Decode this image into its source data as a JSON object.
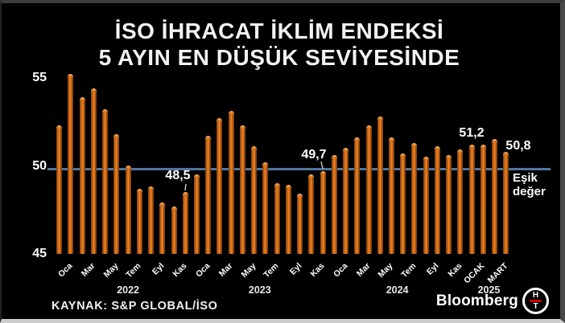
{
  "title": {
    "line1": "İSO İHRACAT İKLİM ENDEKSİ",
    "line2": "5 AYIN EN DÜŞÜK SEVİYESİNDE"
  },
  "source": "KAYNAK: S&P GLOBAL/İSO",
  "branding": {
    "wordmark": "Bloomberg",
    "logo_top": "H",
    "logo_bottom": "T"
  },
  "chart_data": {
    "type": "bar",
    "title": "İSO İHRACAT İKLİM ENDEKSİ 5 AYIN EN DÜŞÜK SEVİYESİNDE",
    "ylabel": "",
    "xlabel": "",
    "ylim": [
      45,
      55.5
    ],
    "yticks": [
      "55",
      "50",
      "45"
    ],
    "grid": false,
    "bar_color": "#e87a1c",
    "threshold": {
      "value": 50,
      "label": "Eşik değer",
      "color": "#50769c"
    },
    "x": [
      "Ara 2021",
      "Oca 2022",
      "Şub 2022",
      "Mar 2022",
      "Nis 2022",
      "May 2022",
      "Haz 2022",
      "Tem 2022",
      "Ağu 2022",
      "Eyl 2022",
      "Eki 2022",
      "Kas 2022",
      "Ara 2022",
      "Oca 2023",
      "Şub 2023",
      "Mar 2023",
      "Nis 2023",
      "May 2023",
      "Haz 2023",
      "Tem 2023",
      "Ağu 2023",
      "Eyl 2023",
      "Eki 2023",
      "Kas 2023",
      "Ara 2023",
      "Oca 2024",
      "Şub 2024",
      "Mar 2024",
      "Nis 2024",
      "May 2024",
      "Haz 2024",
      "Tem 2024",
      "Ağu 2024",
      "Eyl 2024",
      "Eki 2024",
      "Kas 2024",
      "Ara 2024",
      "Oca 2025",
      "Şub 2025",
      "Mar 2025"
    ],
    "values": [
      52.3,
      55.2,
      53.9,
      54.4,
      53.2,
      51.8,
      50.0,
      48.7,
      48.8,
      47.9,
      47.7,
      48.5,
      49.5,
      51.7,
      52.7,
      53.1,
      52.3,
      51.1,
      50.2,
      49.0,
      48.9,
      48.4,
      49.5,
      49.7,
      50.6,
      51.0,
      51.6,
      52.3,
      52.8,
      51.6,
      50.7,
      51.3,
      50.5,
      51.1,
      50.6,
      50.9,
      51.2,
      51.2,
      51.5,
      50.8
    ],
    "x_tick_labels": [
      {
        "label": "Oca",
        "bar": 1
      },
      {
        "label": "Mar",
        "bar": 3
      },
      {
        "label": "May",
        "bar": 5
      },
      {
        "label": "Tem",
        "bar": 7
      },
      {
        "label": "Eyl",
        "bar": 9
      },
      {
        "label": "Kas",
        "bar": 11
      },
      {
        "label": "Oca",
        "bar": 13
      },
      {
        "label": "Mar",
        "bar": 15
      },
      {
        "label": "May",
        "bar": 17
      },
      {
        "label": "Tem",
        "bar": 19
      },
      {
        "label": "Eyl",
        "bar": 21
      },
      {
        "label": "Kas",
        "bar": 23
      },
      {
        "label": "Oca",
        "bar": 25
      },
      {
        "label": "Mar",
        "bar": 27
      },
      {
        "label": "May",
        "bar": 29
      },
      {
        "label": "Tem",
        "bar": 31
      },
      {
        "label": "Eyl",
        "bar": 33
      },
      {
        "label": "Kas",
        "bar": 35
      },
      {
        "label": "OCAK",
        "bar": 37
      },
      {
        "label": "MART",
        "bar": 39
      }
    ],
    "year_labels": [
      {
        "label": "2022",
        "bar": 6
      },
      {
        "label": "2023",
        "bar": 17.5
      },
      {
        "label": "2024",
        "bar": 29.5
      },
      {
        "label": "2025",
        "bar": 37.5
      }
    ],
    "callouts": [
      {
        "text": "48,5",
        "bar": 11
      },
      {
        "text": "49,7",
        "bar": 23
      },
      {
        "text": "51,2",
        "bar": 37
      },
      {
        "text": "50,8",
        "bar": 39
      }
    ],
    "legend": null
  }
}
